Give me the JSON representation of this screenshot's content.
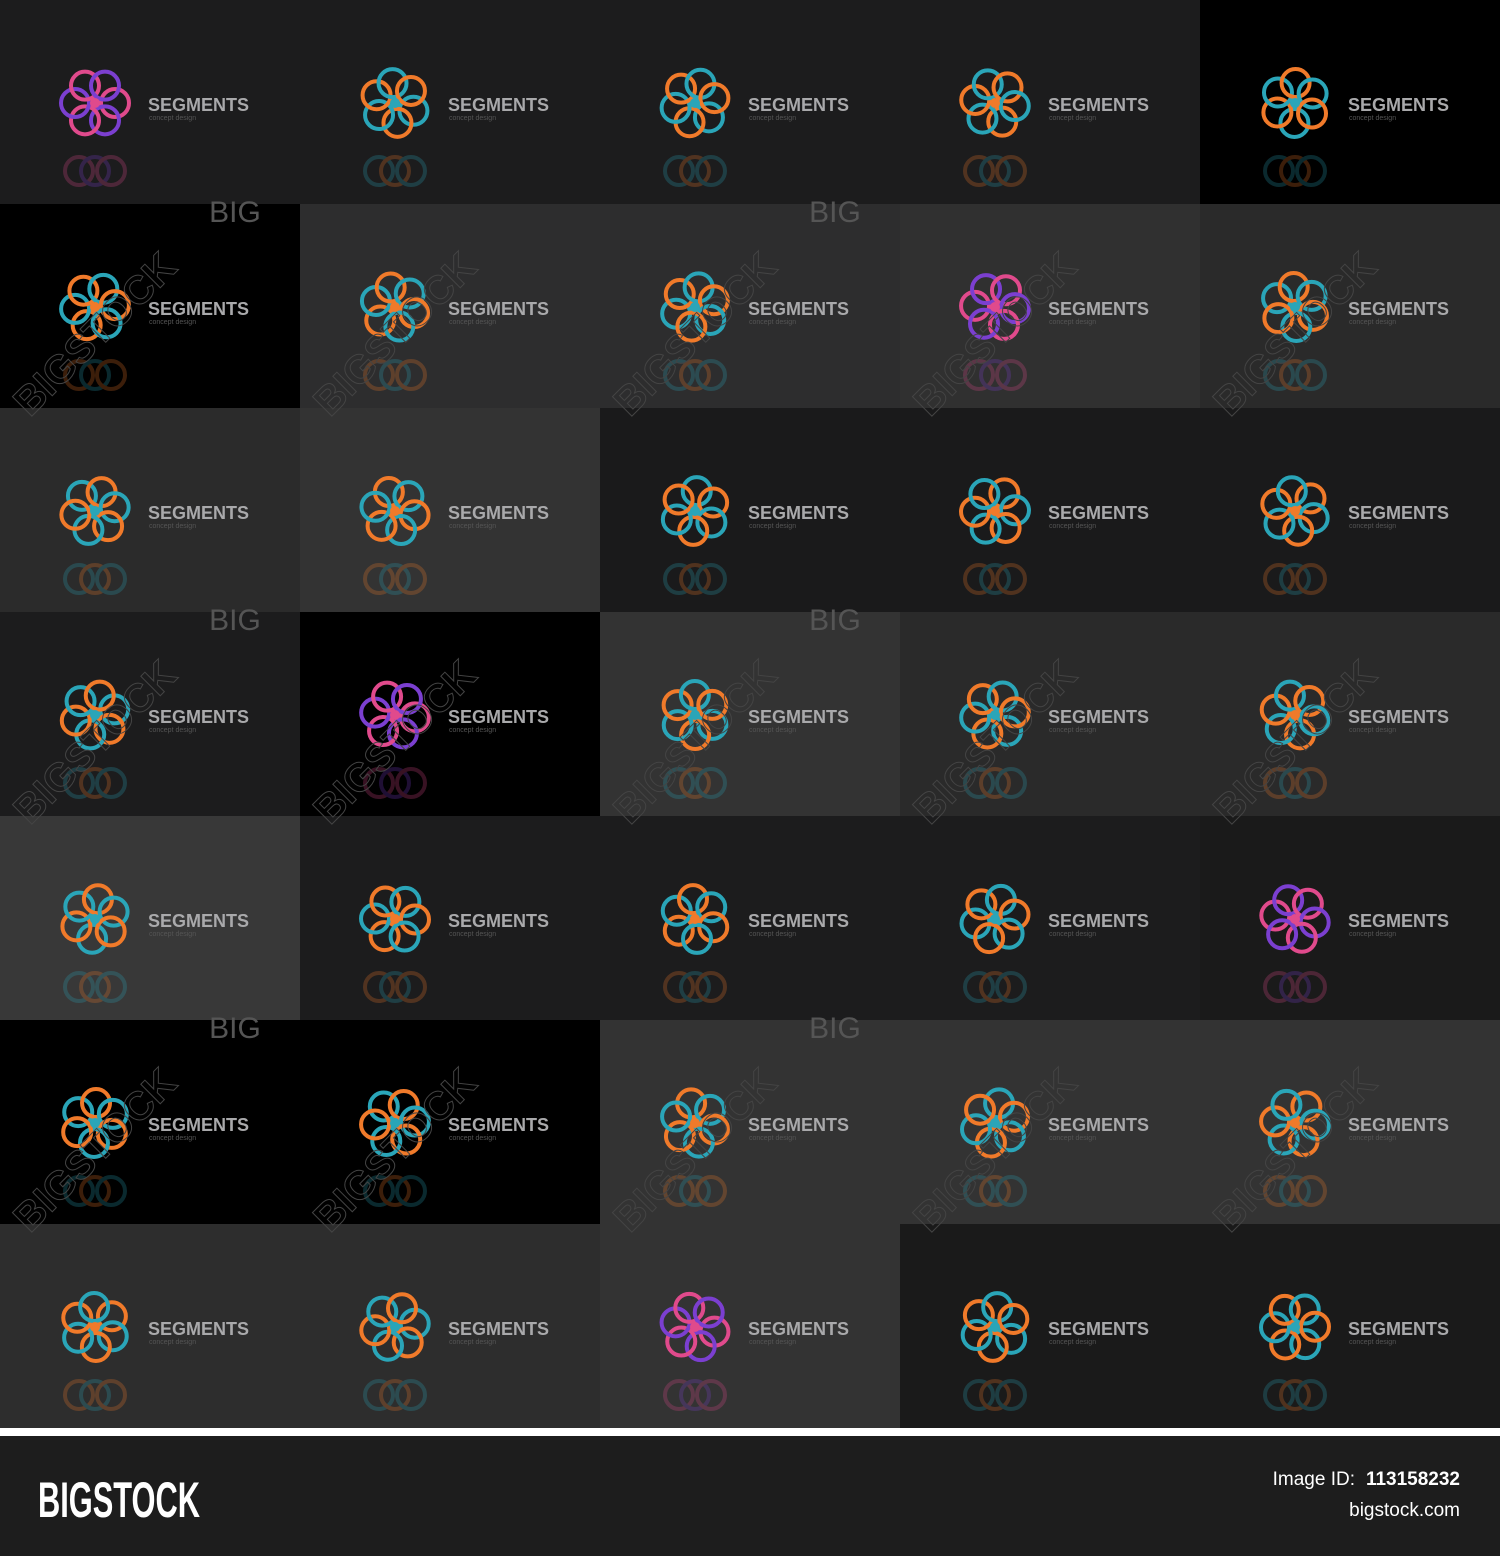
{
  "tiles": [
    {
      "title": "SEGMENTS",
      "subtitle": "concept design"
    },
    {
      "title": "SEGMENTS",
      "subtitle": "concept design"
    },
    {
      "title": "SEGMENTS",
      "subtitle": "concept design"
    },
    {
      "title": "SEGMENTS",
      "subtitle": "concept design"
    },
    {
      "title": "SEGMENTS",
      "subtitle": "concept design"
    },
    {
      "title": "SEGMENTS",
      "subtitle": "concept design"
    },
    {
      "title": "SEGMENTS",
      "subtitle": "concept design"
    },
    {
      "title": "SEGMENTS",
      "subtitle": "concept design"
    },
    {
      "title": "SEGMENTS",
      "subtitle": "concept design"
    },
    {
      "title": "SEGMENTS",
      "subtitle": "concept design"
    },
    {
      "title": "SEGMENTS",
      "subtitle": "concept design"
    },
    {
      "title": "SEGMENTS",
      "subtitle": "concept design"
    },
    {
      "title": "SEGMENTS",
      "subtitle": "concept design"
    },
    {
      "title": "SEGMENTS",
      "subtitle": "concept design"
    },
    {
      "title": "SEGMENTS",
      "subtitle": "concept design"
    },
    {
      "title": "SEGMENTS",
      "subtitle": "concept design"
    },
    {
      "title": "SEGMENTS",
      "subtitle": "concept design"
    },
    {
      "title": "SEGMENTS",
      "subtitle": "concept design"
    },
    {
      "title": "SEGMENTS",
      "subtitle": "concept design"
    },
    {
      "title": "SEGMENTS",
      "subtitle": "concept design"
    },
    {
      "title": "SEGMENTS",
      "subtitle": "concept design"
    },
    {
      "title": "SEGMENTS",
      "subtitle": "concept design"
    },
    {
      "title": "SEGMENTS",
      "subtitle": "concept design"
    },
    {
      "title": "SEGMENTS",
      "subtitle": "concept design"
    },
    {
      "title": "SEGMENTS",
      "subtitle": "concept design"
    },
    {
      "title": "SEGMENTS",
      "subtitle": "concept design"
    },
    {
      "title": "SEGMENTS",
      "subtitle": "concept design"
    },
    {
      "title": "SEGMENTS",
      "subtitle": "concept design"
    },
    {
      "title": "SEGMENTS",
      "subtitle": "concept design"
    },
    {
      "title": "SEGMENTS",
      "subtitle": "concept design"
    },
    {
      "title": "SEGMENTS",
      "subtitle": "concept design"
    },
    {
      "title": "SEGMENTS",
      "subtitle": "concept design"
    },
    {
      "title": "SEGMENTS",
      "subtitle": "concept design"
    },
    {
      "title": "SEGMENTS",
      "subtitle": "concept design"
    },
    {
      "title": "SEGMENTS",
      "subtitle": "concept design"
    }
  ],
  "watermark": {
    "short": "BIG",
    "long": "BIGSTOCK"
  },
  "footer": {
    "brand": "BIGSTOCK",
    "id_label": "Image ID:",
    "id_value": "113158232",
    "site": "bigstock.com"
  }
}
